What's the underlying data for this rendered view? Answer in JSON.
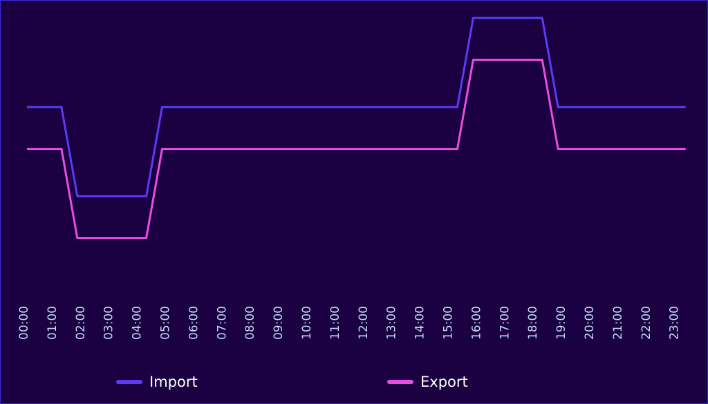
{
  "chart_data": {
    "type": "line",
    "title": "",
    "xlabel": "",
    "ylabel": "",
    "grid": false,
    "legend_position": "bottom",
    "x": [
      "00:00",
      "01:00",
      "02:00",
      "03:00",
      "04:00",
      "05:00",
      "06:00",
      "07:00",
      "08:00",
      "09:00",
      "10:00",
      "11:00",
      "12:00",
      "13:00",
      "14:00",
      "15:00",
      "16:00",
      "17:00",
      "18:00",
      "19:00",
      "20:00",
      "21:00",
      "22:00",
      "23:00"
    ],
    "series": [
      {
        "name": "Import",
        "color": "#5b3cf5",
        "values": [
          22,
          22,
          12,
          12,
          12,
          22,
          22,
          22,
          22,
          22,
          22,
          22,
          22,
          22,
          22,
          22,
          32,
          32,
          32,
          22,
          22,
          22,
          22,
          22
        ]
      },
      {
        "name": "Export",
        "color": "#e84ee0",
        "values": [
          17.3,
          17.3,
          7.3,
          7.3,
          7.3,
          17.3,
          17.3,
          17.3,
          17.3,
          17.3,
          17.3,
          17.3,
          17.3,
          17.3,
          17.3,
          17.3,
          27.3,
          27.3,
          27.3,
          17.3,
          17.3,
          17.3,
          17.3,
          17.3
        ]
      }
    ]
  }
}
